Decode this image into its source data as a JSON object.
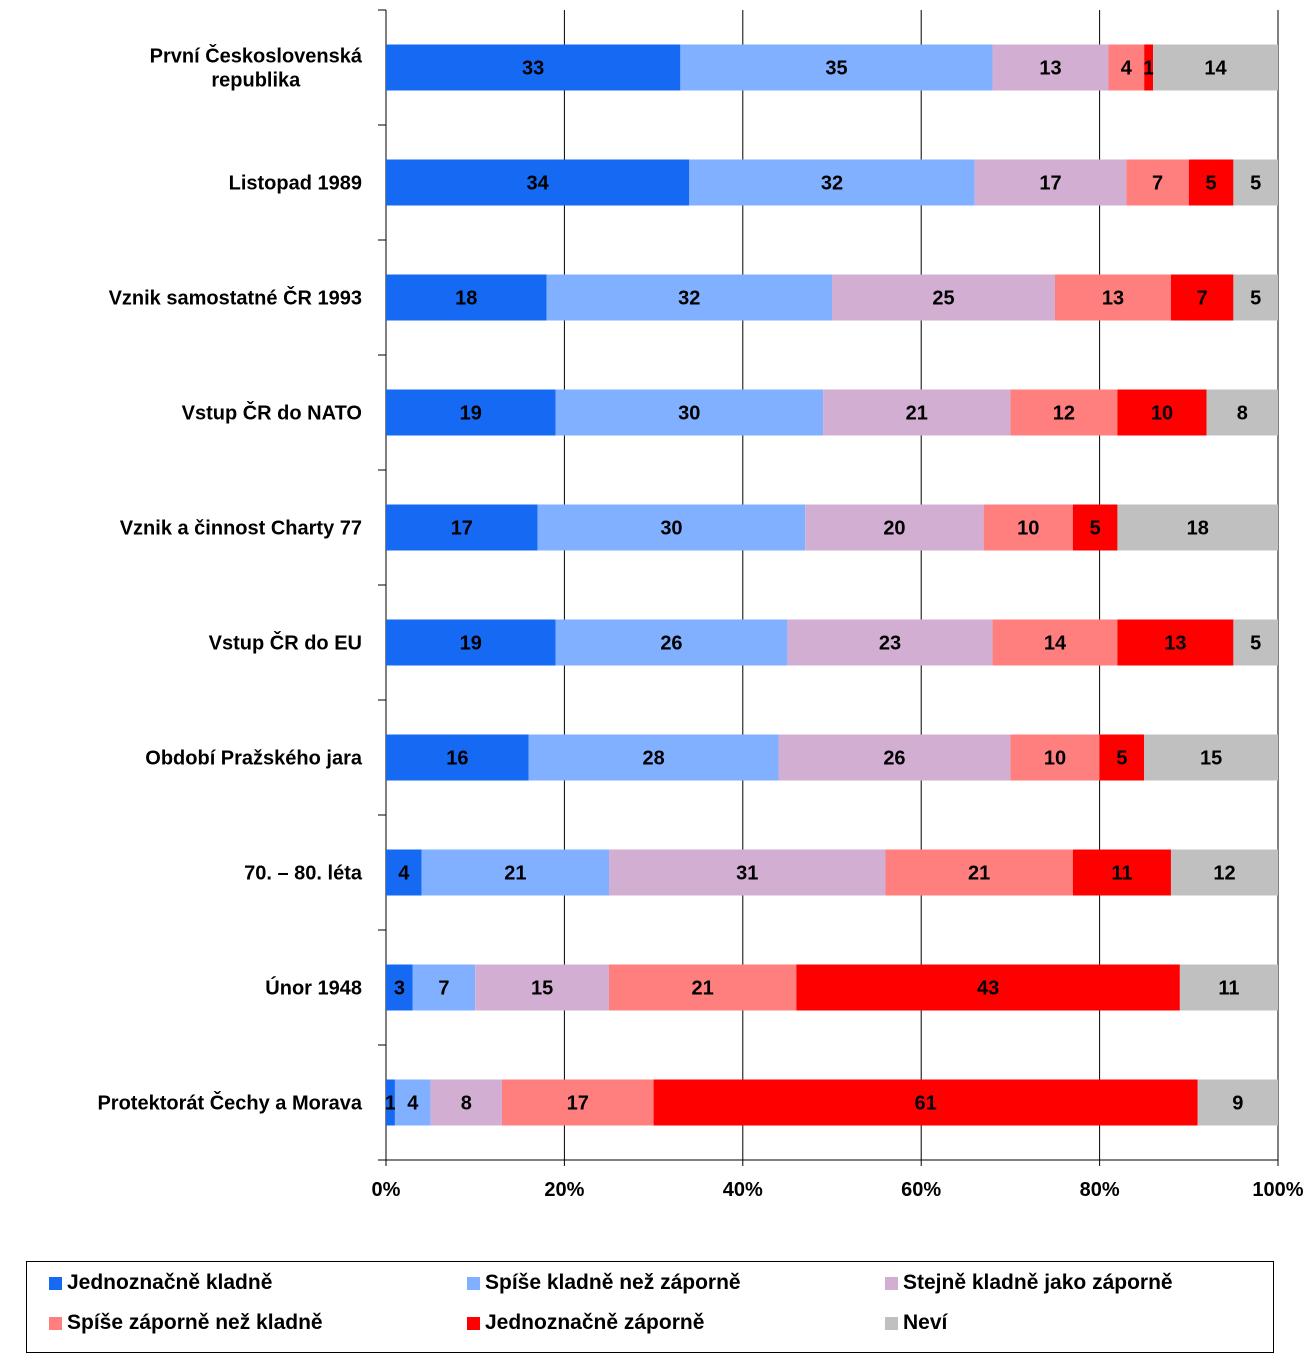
{
  "chart_data": {
    "type": "bar",
    "orientation": "horizontal",
    "stacked": "percent",
    "categories": [
      [
        "První Československá",
        "republika"
      ],
      [
        "Listopad 1989"
      ],
      [
        "Vznik samostatné ČR 1993"
      ],
      [
        "Vstup ČR do NATO"
      ],
      [
        "Vznik a činnost Charty 77"
      ],
      [
        "Vstup ČR do EU"
      ],
      [
        "Období Pražského jara"
      ],
      [
        "70. – 80. léta"
      ],
      [
        "Únor 1948"
      ],
      [
        "Protektorát Čechy a Morava"
      ]
    ],
    "series": [
      {
        "name": "Jednoznačně kladně",
        "color": "#1569f2",
        "values": [
          33,
          34,
          18,
          19,
          17,
          19,
          16,
          4,
          3,
          1
        ]
      },
      {
        "name": "Spíše kladně než záporně",
        "color": "#80b0ff",
        "values": [
          35,
          32,
          32,
          30,
          30,
          26,
          28,
          21,
          7,
          4
        ]
      },
      {
        "name": "Stejně kladně jako záporně",
        "color": "#d3aed3",
        "values": [
          13,
          17,
          25,
          21,
          20,
          23,
          26,
          31,
          15,
          8
        ]
      },
      {
        "name": "Spíše záporně než kladně",
        "color": "#ff7f7f",
        "values": [
          4,
          7,
          13,
          12,
          10,
          14,
          10,
          21,
          21,
          17
        ]
      },
      {
        "name": "Jednoznačně záporně",
        "color": "#ff0000",
        "values": [
          1,
          5,
          7,
          10,
          5,
          13,
          5,
          11,
          43,
          61
        ]
      },
      {
        "name": "Neví",
        "color": "#c0c0c0",
        "values": [
          14,
          5,
          5,
          8,
          18,
          5,
          15,
          12,
          11,
          9
        ]
      }
    ],
    "xticks": [
      "0%",
      "20%",
      "40%",
      "60%",
      "80%",
      "100%"
    ],
    "xlim": [
      0,
      100
    ],
    "grid": "vertical",
    "legend_position": "bottom"
  }
}
